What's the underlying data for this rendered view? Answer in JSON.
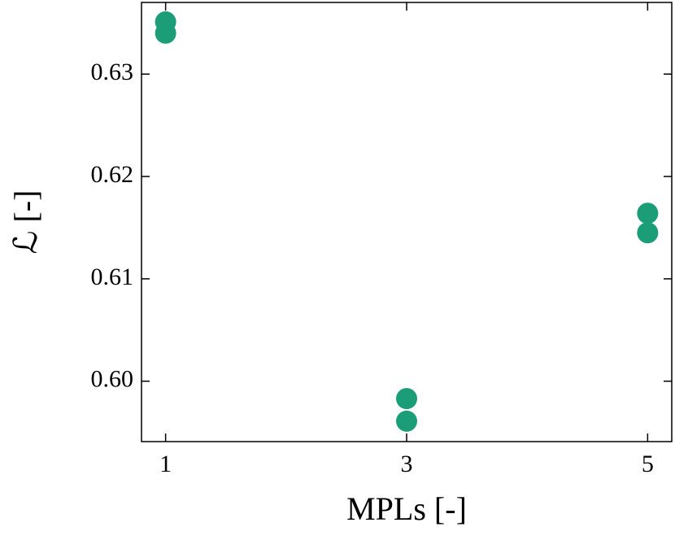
{
  "chart_data": {
    "type": "scatter",
    "xlabel": "MPLs [-]",
    "ylabel": "ℒ [-]",
    "x": [
      1,
      1,
      3,
      3,
      5,
      5
    ],
    "values": [
      0.6351,
      0.634,
      0.5983,
      0.5961,
      0.6164,
      0.6145
    ],
    "color": "#1b9e77",
    "xlim": [
      0.8,
      5.2
    ],
    "xticks": [
      1,
      3,
      5
    ],
    "ylim": [
      0.5941,
      0.637
    ],
    "yticks": [
      {
        "value": 0.6,
        "label": "0.60"
      },
      0.61,
      0.62,
      0.63
    ]
  }
}
